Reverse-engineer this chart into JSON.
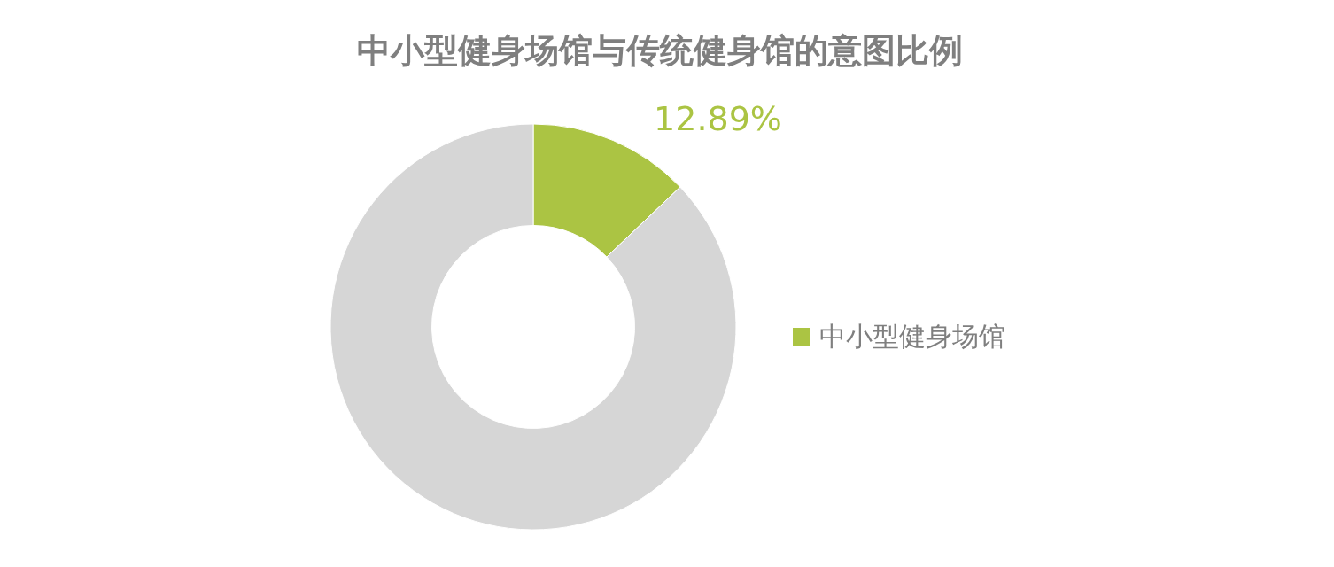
{
  "chart_data": {
    "type": "donut",
    "title": "中小型健身场馆与传统健身馆的意图比例",
    "categories": [
      "中小型健身场馆",
      null
    ],
    "values": [
      12.89,
      87.11
    ],
    "colors": [
      "#abc443",
      "#d6d6d6"
    ],
    "value_labels": [
      "12.89%",
      null
    ],
    "legend": "right"
  }
}
